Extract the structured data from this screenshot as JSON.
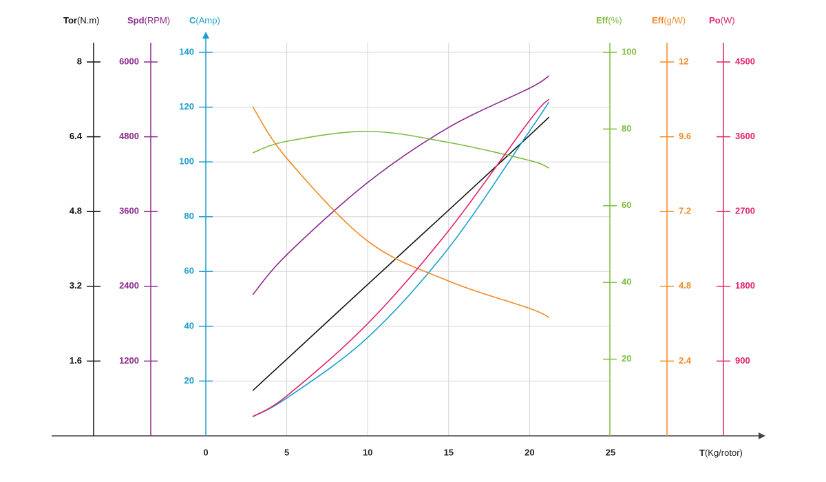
{
  "chart_data": {
    "type": "line",
    "x": [
      2.9,
      5,
      10,
      15,
      20,
      21.2
    ],
    "xlim": [
      0,
      25
    ],
    "xticks": [
      0,
      5,
      10,
      15,
      20,
      25
    ],
    "xlabel": {
      "name": "T",
      "unit": "(Kg/rotor)"
    },
    "grid": true,
    "axes": [
      {
        "name": "Tor",
        "unit": "(N.m)",
        "color": "#111111",
        "side": "left",
        "ylim": [
          0,
          8
        ],
        "yticks": [
          1.6,
          3.2,
          4.8,
          6.4,
          8
        ]
      },
      {
        "name": "Spd",
        "unit": "(RPM)",
        "color": "#8b2a8e",
        "side": "left",
        "ylim": [
          0,
          6000
        ],
        "yticks": [
          1200,
          2400,
          3600,
          4800,
          6000
        ]
      },
      {
        "name": "C",
        "unit": "(Amp)",
        "color": "#1a9fd0",
        "side": "left",
        "ylim": [
          0,
          140
        ],
        "yticks": [
          20,
          40,
          60,
          80,
          100,
          120,
          140
        ]
      },
      {
        "name": "Eff",
        "unit": "(%)",
        "color": "#7dbd3c",
        "side": "right",
        "ylim": [
          0,
          100
        ],
        "yticks": [
          20,
          40,
          60,
          80,
          100
        ]
      },
      {
        "name": "Eff",
        "unit": "(g/W)",
        "color": "#f08a24",
        "side": "right",
        "ylim": [
          0,
          12
        ],
        "yticks": [
          2.4,
          4.8,
          7.2,
          9.6,
          12
        ]
      },
      {
        "name": "Po",
        "unit": "(W)",
        "color": "#e0246c",
        "side": "right",
        "ylim": [
          0,
          4500
        ],
        "yticks": [
          900,
          1800,
          2700,
          3600,
          4500
        ]
      }
    ],
    "series": [
      {
        "axis": 0,
        "color": "#111111",
        "values": [
          0.97,
          1.64,
          3.24,
          4.83,
          6.43,
          6.82
        ]
      },
      {
        "axis": 1,
        "color": "#8b2a8e",
        "values": [
          2265,
          2906,
          4066,
          4950,
          5580,
          5779
        ]
      },
      {
        "axis": 2,
        "color": "#1a9fd0",
        "values": [
          7.0,
          13.8,
          35.9,
          68.6,
          111.3,
          121.9
        ]
      },
      {
        "axis": 3,
        "color": "#7dbd3c",
        "values": [
          73.8,
          76.8,
          79.4,
          76.5,
          71.8,
          69.8
        ]
      },
      {
        "axis": 4,
        "color": "#f08a24",
        "values": [
          10.56,
          8.91,
          6.25,
          4.97,
          4.09,
          3.8
        ]
      },
      {
        "axis": 5,
        "color": "#e0246c",
        "values": [
          232,
          481,
          1351,
          2470,
          3796,
          4052
        ]
      }
    ]
  }
}
